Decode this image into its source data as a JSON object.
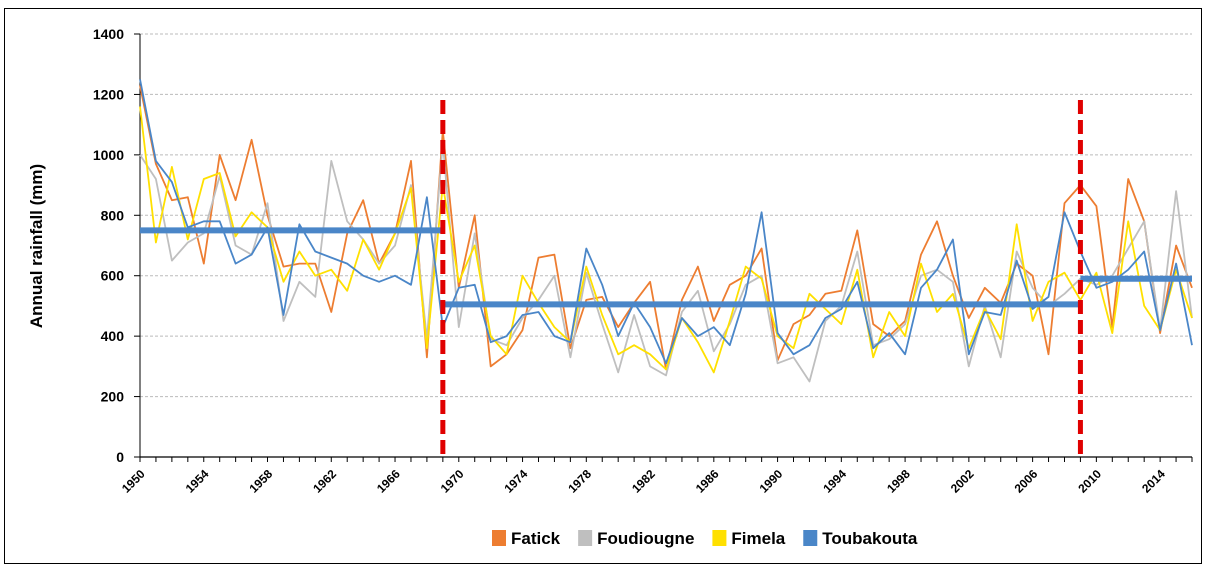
{
  "chart_data": {
    "type": "line",
    "title": "",
    "xlabel": "",
    "ylabel": "Annual rainfall (mm)",
    "ylim": [
      0,
      1400
    ],
    "yticks": [
      0,
      200,
      400,
      600,
      800,
      1000,
      1200,
      1400
    ],
    "xlim": [
      1950,
      2016
    ],
    "xticks": [
      1950,
      1954,
      1958,
      1962,
      1966,
      1970,
      1974,
      1978,
      1982,
      1986,
      1990,
      1994,
      1998,
      2002,
      2006,
      2010,
      2014
    ],
    "grid": "horizontal dashed",
    "legend_position": "bottom",
    "x": [
      1950,
      1951,
      1952,
      1953,
      1954,
      1955,
      1956,
      1957,
      1958,
      1959,
      1960,
      1961,
      1962,
      1963,
      1964,
      1965,
      1966,
      1967,
      1968,
      1969,
      1970,
      1971,
      1972,
      1973,
      1974,
      1975,
      1976,
      1977,
      1978,
      1979,
      1980,
      1981,
      1982,
      1983,
      1984,
      1985,
      1986,
      1987,
      1988,
      1989,
      1990,
      1991,
      1992,
      1993,
      1994,
      1995,
      1996,
      1997,
      1998,
      1999,
      2000,
      2001,
      2002,
      2003,
      2004,
      2005,
      2006,
      2007,
      2008,
      2009,
      2010,
      2011,
      2012,
      2013,
      2014,
      2015,
      2016
    ],
    "series": [
      {
        "name": "Fatick",
        "color": "#ED7D31",
        "values": [
          1230,
          970,
          850,
          860,
          640,
          1000,
          850,
          1050,
          800,
          630,
          640,
          640,
          480,
          740,
          850,
          640,
          740,
          980,
          330,
          1080,
          560,
          800,
          300,
          340,
          420,
          660,
          670,
          360,
          520,
          530,
          430,
          510,
          580,
          290,
          520,
          630,
          450,
          570,
          600,
          690,
          320,
          440,
          470,
          540,
          550,
          750,
          440,
          400,
          450,
          670,
          780,
          600,
          460,
          560,
          510,
          640,
          600,
          340,
          840,
          900,
          830,
          430,
          920,
          780,
          410,
          700,
          560
        ]
      },
      {
        "name": "Foudiougne",
        "color": "#BFBFBF",
        "values": [
          1000,
          920,
          650,
          710,
          740,
          930,
          700,
          670,
          840,
          450,
          580,
          530,
          980,
          780,
          720,
          640,
          700,
          900,
          390,
          1040,
          430,
          740,
          390,
          370,
          460,
          520,
          600,
          330,
          610,
          440,
          280,
          470,
          300,
          270,
          480,
          550,
          350,
          440,
          570,
          600,
          310,
          330,
          250,
          450,
          500,
          680,
          370,
          390,
          440,
          600,
          620,
          580,
          300,
          500,
          330,
          680,
          560,
          500,
          540,
          590,
          570,
          600,
          690,
          780,
          420,
          880,
          460
        ]
      },
      {
        "name": "Fimela",
        "color": "#FFE000",
        "values": [
          1160,
          710,
          960,
          720,
          920,
          940,
          730,
          810,
          760,
          580,
          680,
          600,
          620,
          550,
          720,
          620,
          740,
          890,
          360,
          900,
          580,
          700,
          400,
          340,
          600,
          510,
          430,
          380,
          630,
          470,
          340,
          370,
          340,
          290,
          460,
          380,
          280,
          450,
          630,
          590,
          400,
          360,
          540,
          490,
          440,
          620,
          330,
          480,
          400,
          640,
          480,
          540,
          360,
          490,
          390,
          770,
          450,
          580,
          610,
          520,
          610,
          410,
          780,
          500,
          420,
          620,
          460
        ]
      },
      {
        "name": "Toubakouta",
        "color": "#4A86C8",
        "values": [
          1250,
          980,
          910,
          760,
          780,
          780,
          640,
          670,
          760,
          470,
          770,
          680,
          660,
          640,
          600,
          580,
          600,
          570,
          860,
          430,
          560,
          570,
          380,
          400,
          470,
          480,
          400,
          380,
          690,
          570,
          400,
          510,
          430,
          310,
          460,
          400,
          430,
          370,
          540,
          810,
          410,
          340,
          370,
          460,
          490,
          580,
          360,
          410,
          340,
          560,
          620,
          720,
          340,
          480,
          470,
          650,
          490,
          530,
          810,
          680,
          560,
          580,
          620,
          680,
          420,
          640,
          370
        ]
      }
    ],
    "mean_lines": [
      {
        "from": 1950,
        "to": 1969,
        "value": 750,
        "color": "#4A86C8"
      },
      {
        "from": 1969,
        "to": 2009,
        "value": 505,
        "color": "#4A86C8"
      },
      {
        "from": 2009,
        "to": 2016,
        "value": 590,
        "color": "#4A86C8"
      }
    ],
    "break_lines": [
      {
        "year": 1969,
        "color": "#E00000"
      },
      {
        "year": 2009,
        "color": "#E00000"
      }
    ]
  }
}
